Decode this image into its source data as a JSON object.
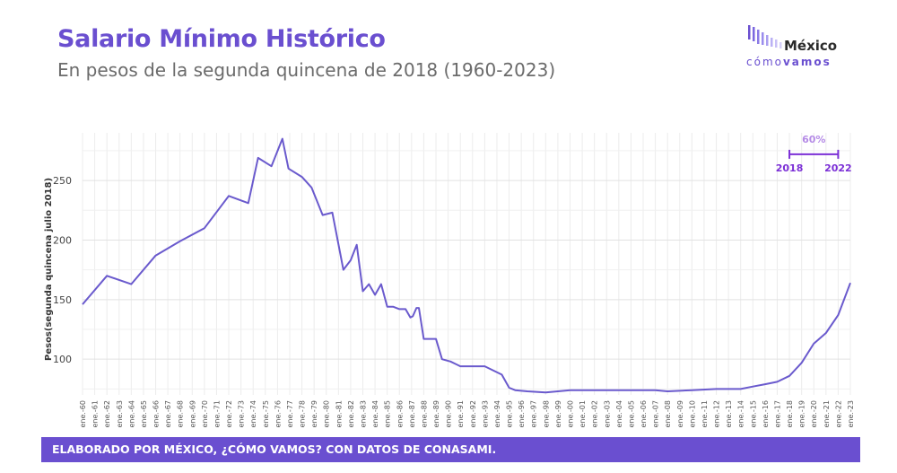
{
  "title": "Salario Mínimo Histórico",
  "subtitle": "En pesos de la segunda quincena de 2018 (1960-2023)",
  "logo": {
    "word": "México",
    "sub_a": "cómo",
    "sub_b": "vamos"
  },
  "footer": "ELABORADO POR MÉXICO, ¿CÓMO VAMOS? CON DATOS DE CONASAMI.",
  "colors": {
    "accent": "#6a4fd0",
    "line": "#6a5acd",
    "annotation": "#7b2fd6",
    "annotation_light": "#b58be6"
  },
  "chart_data": {
    "type": "line",
    "title": "Salario Mínimo Histórico",
    "ylabel": "Pesos(segunda quincena julio 2018)",
    "xlabel": "",
    "ylim": [
      70,
      290
    ],
    "yticks": [
      100,
      150,
      200,
      250
    ],
    "grid": true,
    "x_tick_labels": [
      "ene.-60",
      "ene.-61",
      "ene.-62",
      "ene.-63",
      "ene.-64",
      "ene.-65",
      "ene.-66",
      "ene.-67",
      "ene.-68",
      "ene.-69",
      "ene.-70",
      "ene.-71",
      "ene.-72",
      "ene.-73",
      "ene.-74",
      "ene.-75",
      "ene.-76",
      "ene.-77",
      "ene.-78",
      "ene.-79",
      "ene.-80",
      "ene.-81",
      "ene.-82",
      "ene.-83",
      "ene.-84",
      "ene.-85",
      "ene.-86",
      "ene.-87",
      "ene.-88",
      "ene.-89",
      "ene.-90",
      "ene.-91",
      "ene.-92",
      "ene.-93",
      "ene.-94",
      "ene.-95",
      "ene.-96",
      "ene.-97",
      "ene.-98",
      "ene.-99",
      "ene.-00",
      "ene.-01",
      "ene.-02",
      "ene.-03",
      "ene.-04",
      "ene.-05",
      "ene.-06",
      "ene.-07",
      "ene.-08",
      "ene.-09",
      "ene.-10",
      "ene.-11",
      "ene.-12",
      "ene.-13",
      "ene.-14",
      "ene.-15",
      "ene.-16",
      "ene.-17",
      "ene.-18",
      "ene.-19",
      "ene.-20",
      "ene.-21",
      "ene.-22",
      "ene.-23"
    ],
    "series": [
      {
        "x": [
          1960,
          1962,
          1964,
          1966,
          1968,
          1970,
          1972,
          1973.6,
          1974.4,
          1975.5,
          1976.4,
          1976.9,
          1978,
          1978.8,
          1979.7,
          1980.5,
          1981.4,
          1982,
          1982.5,
          1983,
          1983.5,
          1984,
          1984.5,
          1985,
          1985.5,
          1986,
          1986.5,
          1986.9,
          1987.1,
          1987.4,
          1987.6,
          1988,
          1988.6,
          1989,
          1989.5,
          1990.2,
          1991,
          1992,
          1993,
          1994.4,
          1995,
          1995.5,
          1996.5,
          1998,
          1999,
          2000,
          2001,
          2003,
          2004,
          2005,
          2007,
          2008,
          2010,
          2012,
          2014,
          2015,
          2016,
          2017,
          2018,
          2019,
          2020,
          2021,
          2022,
          2023
        ],
        "y": [
          146,
          170,
          163,
          187,
          199,
          210,
          237,
          231,
          269,
          262,
          285,
          260,
          253,
          244,
          221,
          223,
          175,
          183,
          196,
          157,
          163,
          154,
          163,
          144,
          144,
          142,
          142,
          135,
          136,
          143,
          143,
          117,
          117,
          117,
          100,
          98,
          94,
          94,
          94,
          87,
          76,
          74,
          73,
          72,
          73,
          74,
          74,
          74,
          74,
          74,
          74,
          73,
          74,
          75,
          75,
          77,
          79,
          81,
          86,
          97,
          113,
          122,
          137,
          164
        ]
      }
    ],
    "annotation": {
      "label": "60%",
      "from_label": "2018",
      "to_label": "2022",
      "x_from": 2018,
      "x_to": 2022,
      "y": 272
    }
  }
}
